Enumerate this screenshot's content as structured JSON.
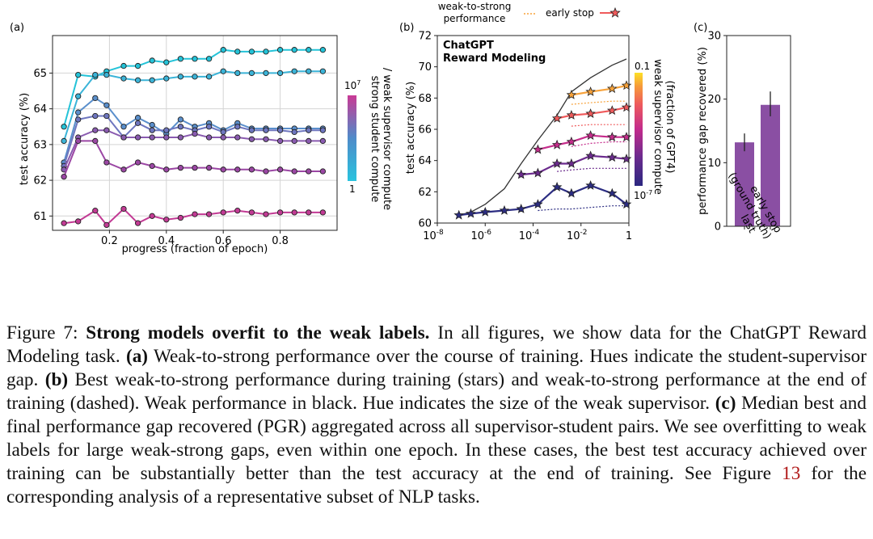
{
  "panels": {
    "a": {
      "label": "(a)"
    },
    "b": {
      "label": "(b)"
    },
    "c": {
      "label": "(c)"
    }
  },
  "chart_data": [
    {
      "id": "a",
      "type": "line",
      "xlabel": "progress (fraction of epoch)",
      "ylabel": "test accuracy (%)",
      "xlim": [
        0.0,
        1.0
      ],
      "ylim": [
        60.6,
        66.05
      ],
      "xticks": [
        0.2,
        0.4,
        0.6,
        0.8
      ],
      "xtick_labels": [
        "0.2",
        "0.4",
        "0.6",
        "0.8"
      ],
      "yticks": [
        61,
        62,
        63,
        64,
        65
      ],
      "ytick_labels": [
        "61",
        "62",
        "63",
        "64",
        "65"
      ],
      "grid": true,
      "colorbar": {
        "label_line1": "strong student compute",
        "label_line2": "/ weak supervisor compute",
        "top_label": "10",
        "top_exp": "7",
        "bottom_label": "1",
        "colors": [
          "#c93a95",
          "#4f8bc9",
          "#29c3de"
        ]
      },
      "x": [
        0.04,
        0.09,
        0.15,
        0.19,
        0.25,
        0.3,
        0.35,
        0.4,
        0.45,
        0.5,
        0.55,
        0.6,
        0.65,
        0.7,
        0.75,
        0.8,
        0.85,
        0.9,
        0.95
      ],
      "series": [
        {
          "color": "#24c3d8",
          "values": [
            63.5,
            64.95,
            64.9,
            65.05,
            65.2,
            65.2,
            65.35,
            65.3,
            65.4,
            65.4,
            65.4,
            65.65,
            65.6,
            65.6,
            65.6,
            65.65,
            65.65,
            65.65,
            65.65
          ]
        },
        {
          "color": "#3bb4d8",
          "values": [
            63.1,
            64.35,
            64.95,
            64.95,
            64.85,
            64.8,
            64.8,
            64.85,
            64.9,
            64.9,
            64.9,
            65.05,
            65.0,
            65.0,
            65.0,
            65.0,
            65.05,
            65.05,
            65.05
          ]
        },
        {
          "color": "#5a8fcc",
          "values": [
            62.5,
            63.9,
            64.3,
            64.1,
            63.5,
            63.75,
            63.55,
            63.3,
            63.7,
            63.5,
            63.6,
            63.4,
            63.6,
            63.45,
            63.45,
            63.45,
            63.45,
            63.45,
            63.45
          ]
        },
        {
          "color": "#6e76bf",
          "values": [
            62.4,
            63.7,
            63.8,
            63.8,
            63.2,
            63.6,
            63.4,
            63.4,
            63.5,
            63.4,
            63.5,
            63.35,
            63.5,
            63.4,
            63.4,
            63.4,
            63.35,
            63.4,
            63.4
          ]
        },
        {
          "color": "#8a5bb0",
          "values": [
            62.3,
            63.2,
            63.4,
            63.4,
            63.2,
            63.2,
            63.2,
            63.2,
            63.2,
            63.3,
            63.2,
            63.2,
            63.2,
            63.15,
            63.15,
            63.1,
            63.1,
            63.1,
            63.1
          ]
        },
        {
          "color": "#9b47a4",
          "values": [
            62.1,
            63.1,
            63.1,
            62.5,
            62.3,
            62.5,
            62.4,
            62.3,
            62.35,
            62.35,
            62.35,
            62.3,
            62.3,
            62.3,
            62.25,
            62.3,
            62.25,
            62.25,
            62.25
          ]
        },
        {
          "color": "#c23a94",
          "values": [
            60.8,
            60.85,
            61.15,
            60.75,
            61.2,
            60.8,
            61.0,
            60.9,
            60.95,
            61.05,
            61.05,
            61.1,
            61.15,
            61.1,
            61.05,
            61.1,
            61.1,
            61.1,
            61.1
          ]
        }
      ]
    },
    {
      "id": "b",
      "type": "line",
      "title_line1": "ChatGPT",
      "title_line2": "Reward Modeling",
      "ylabel": "test accuracy (%)",
      "xscale": "log",
      "xlim": [
        -8,
        0
      ],
      "ylim": [
        60,
        72
      ],
      "xticks": [
        -8,
        -6,
        -4,
        -2,
        0
      ],
      "xtick_labels": [
        {
          "base": "10",
          "exp": "-8"
        },
        {
          "base": "10",
          "exp": "-6"
        },
        {
          "base": "10",
          "exp": "-4"
        },
        {
          "base": "10",
          "exp": "-2"
        },
        {
          "base": "1",
          "exp": ""
        }
      ],
      "yticks": [
        60,
        62,
        64,
        66,
        68,
        70,
        72
      ],
      "ytick_labels": [
        "60",
        "62",
        "64",
        "66",
        "68",
        "70",
        "72"
      ],
      "legend": {
        "weak_to_strong_line1": "weak-to-strong",
        "weak_to_strong_line2": "performance",
        "early_stop": "early stop",
        "placement": "top"
      },
      "colorbar": {
        "label_line1": "weak supervisor compute",
        "label_line2": "(fraction of GPT4)",
        "top_label": "0.1",
        "bottom_label": "10",
        "bottom_exp": "-7",
        "colors": [
          "#2b2780",
          "#6a2b8e",
          "#c22b8c",
          "#ee5a5c",
          "#f69a3a",
          "#fde025"
        ]
      },
      "weak_performance": {
        "color": "#333333",
        "x": [
          -7.1,
          -6.6,
          -6.0,
          -5.2,
          -4.5,
          -3.8,
          -3.0,
          -2.4,
          -1.6,
          -0.7,
          -0.1
        ],
        "y": [
          60.5,
          60.7,
          61.2,
          62.2,
          63.8,
          65.3,
          66.9,
          68.4,
          69.3,
          70.1,
          70.5
        ]
      },
      "series": [
        {
          "color": "#2c2d82",
          "early_stop": {
            "x": [
              -7.1,
              -6.6,
              -6.0,
              -5.2,
              -4.5,
              -3.8,
              -3.0,
              -2.4,
              -1.6,
              -0.7,
              -0.1
            ],
            "y": [
              60.5,
              60.6,
              60.7,
              60.8,
              60.9,
              61.2,
              62.3,
              61.9,
              62.4,
              61.9,
              61.2
            ]
          },
          "final": {
            "x": [
              -3.8,
              -3.0,
              -2.4,
              -1.6,
              -0.7,
              -0.1
            ],
            "y": [
              60.8,
              60.9,
              60.9,
              61.0,
              61.1,
              61.1
            ]
          }
        },
        {
          "color": "#6b2b8d",
          "early_stop": {
            "x": [
              -4.5,
              -3.8,
              -3.0,
              -2.4,
              -1.6,
              -0.7,
              -0.1
            ],
            "y": [
              63.1,
              63.2,
              63.8,
              63.8,
              64.3,
              64.2,
              64.1
            ]
          },
          "final": {
            "x": [
              -3.0,
              -2.4,
              -1.6,
              -0.7,
              -0.1
            ],
            "y": [
              63.3,
              63.4,
              63.5,
              63.5,
              63.5
            ]
          }
        },
        {
          "color": "#c52c8b",
          "early_stop": {
            "x": [
              -3.8,
              -3.0,
              -2.4,
              -1.6,
              -0.7,
              -0.1
            ],
            "y": [
              64.7,
              65.0,
              65.2,
              65.6,
              65.5,
              65.5
            ]
          },
          "final": {
            "x": [
              -2.4,
              -1.6,
              -0.7,
              -0.1
            ],
            "y": [
              64.9,
              65.1,
              65.2,
              65.2
            ]
          }
        },
        {
          "color": "#ef5a5b",
          "early_stop": {
            "x": [
              -3.0,
              -2.4,
              -1.6,
              -0.7,
              -0.1
            ],
            "y": [
              66.7,
              66.9,
              67.0,
              67.2,
              67.4
            ]
          },
          "final": {
            "x": [
              -2.4,
              -1.6,
              -0.7,
              -0.1
            ],
            "y": [
              66.2,
              66.3,
              66.3,
              66.3
            ]
          }
        },
        {
          "color": "#f7a23a",
          "early_stop": {
            "x": [
              -2.4,
              -1.6,
              -0.7,
              -0.1
            ],
            "y": [
              68.2,
              68.4,
              68.6,
              68.8
            ]
          },
          "final": {
            "x": [
              -2.4,
              -1.6,
              -0.7,
              -0.1
            ],
            "y": [
              67.6,
              67.7,
              67.8,
              67.8
            ]
          }
        }
      ]
    },
    {
      "id": "c",
      "type": "bar",
      "ylabel": "performance gap recovered (%)",
      "ylim": [
        0,
        30
      ],
      "yticks": [
        0,
        10,
        20,
        30
      ],
      "ytick_labels": [
        "0",
        "10",
        "20",
        "30"
      ],
      "bar_color": "#8a4fa3",
      "categories": [
        {
          "line1": "last",
          "line2": ""
        },
        {
          "line1": "early stop",
          "line2": "(ground truth)"
        }
      ],
      "values": [
        13.2,
        19.1
      ],
      "errors": [
        [
          11.8,
          14.6
        ],
        [
          17.3,
          21.2
        ]
      ]
    }
  ],
  "caption": {
    "prefix": "Figure 7: ",
    "bold": "Strong models overfit to the weak labels.",
    "s1": " In all figures, we show data for the ChatGPT Reward Modeling task. ",
    "a_label": "(a)",
    "s2": " Weak-to-strong performance over the course of training. Hues indicate the student-supervisor gap. ",
    "b_label": "(b)",
    "s3": " Best weak-to-strong performance during training (stars) and weak-to-strong performance at the end of training (dashed). Weak performance in black. Hue indicates the size of the weak supervisor. ",
    "c_label": "(c)",
    "s4": " Median best and final performance gap recovered (PGR) aggregated across all supervisor-student pairs. We see overfitting to weak labels for large weak-strong gaps, even within one epoch. In these cases, the best test accuracy achieved over training can be substantially better than the test accuracy at the end of training. See Figure ",
    "ref": "13",
    "s5": " for the corresponding analysis of a representative subset of NLP tasks."
  }
}
